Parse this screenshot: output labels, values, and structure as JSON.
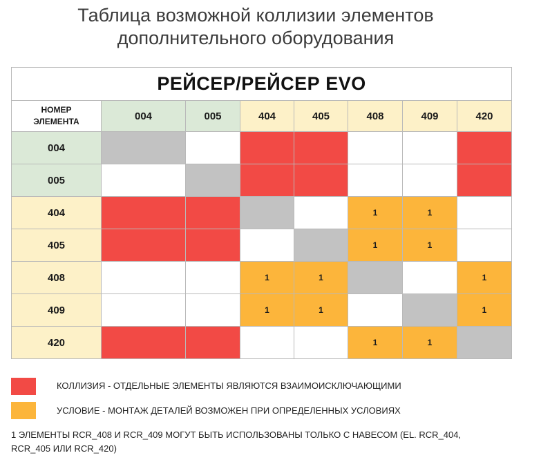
{
  "title_line1": "Таблица возможной коллизии элементов",
  "title_line2": "дополнительного оборудования",
  "banner": "РЕЙСЕР/РЕЙСЕР EVO",
  "corner_line1": "НОМЕР",
  "corner_line2": "ЭЛЕМЕНТА",
  "columns": [
    "004",
    "005",
    "404",
    "405",
    "408",
    "409",
    "420"
  ],
  "rows": [
    {
      "label": "004",
      "cells": [
        "",
        "",
        "",
        "",
        "",
        "",
        ""
      ]
    },
    {
      "label": "005",
      "cells": [
        "",
        "",
        "",
        "",
        "",
        "",
        ""
      ]
    },
    {
      "label": "404",
      "cells": [
        "",
        "",
        "",
        "",
        "1",
        "1",
        ""
      ]
    },
    {
      "label": "405",
      "cells": [
        "",
        "",
        "",
        "",
        "1",
        "1",
        ""
      ]
    },
    {
      "label": "408",
      "cells": [
        "",
        "",
        "1",
        "1",
        "",
        "",
        "1"
      ]
    },
    {
      "label": "409",
      "cells": [
        "",
        "",
        "1",
        "1",
        "",
        "",
        "1"
      ]
    },
    {
      "label": "420",
      "cells": [
        "",
        "",
        "",
        "",
        "1",
        "1",
        ""
      ]
    }
  ],
  "cell_status": [
    [
      "same",
      "none",
      "collision",
      "collision",
      "none",
      "none",
      "collision"
    ],
    [
      "none",
      "same",
      "collision",
      "collision",
      "none",
      "none",
      "collision"
    ],
    [
      "collision",
      "collision",
      "same",
      "none",
      "condition",
      "condition",
      "none"
    ],
    [
      "collision",
      "collision",
      "none",
      "same",
      "condition",
      "condition",
      "none"
    ],
    [
      "none",
      "none",
      "condition",
      "condition",
      "same",
      "none",
      "condition"
    ],
    [
      "none",
      "none",
      "condition",
      "condition",
      "none",
      "same",
      "condition"
    ],
    [
      "collision",
      "collision",
      "none",
      "none",
      "condition",
      "condition",
      "same"
    ]
  ],
  "header_groups": [
    "a",
    "a",
    "b",
    "b",
    "b",
    "b",
    "b"
  ],
  "colors": {
    "collision": "#f24a45",
    "condition": "#fcb53b",
    "same": "#c2c2c2",
    "none": "#ffffff",
    "group_a": "#dbe9d7",
    "group_b": "#fdf1c8"
  },
  "legend": {
    "collision": "КОЛЛИЗИЯ - ОТДЕЛЬНЫЕ ЭЛЕМЕНТЫ ЯВЛЯЮТСЯ ВЗАИМОИСКЛЮЧАЮЩИМИ",
    "condition": "УСЛОВИЕ - МОНТАЖ ДЕТАЛЕЙ ВОЗМОЖЕН ПРИ ОПРЕДЕЛЕННЫХ УСЛОВИЯХ"
  },
  "note_line1": "1 ЭЛЕМЕНТЫ RCR_408 И RCR_409 МОГУТ БЫТЬ ИСПОЛЬЗОВАНЫ ТОЛЬКО С НАВЕСОМ (EL. RCR_404,",
  "note_line2": "RCR_405 ИЛИ RCR_420)"
}
